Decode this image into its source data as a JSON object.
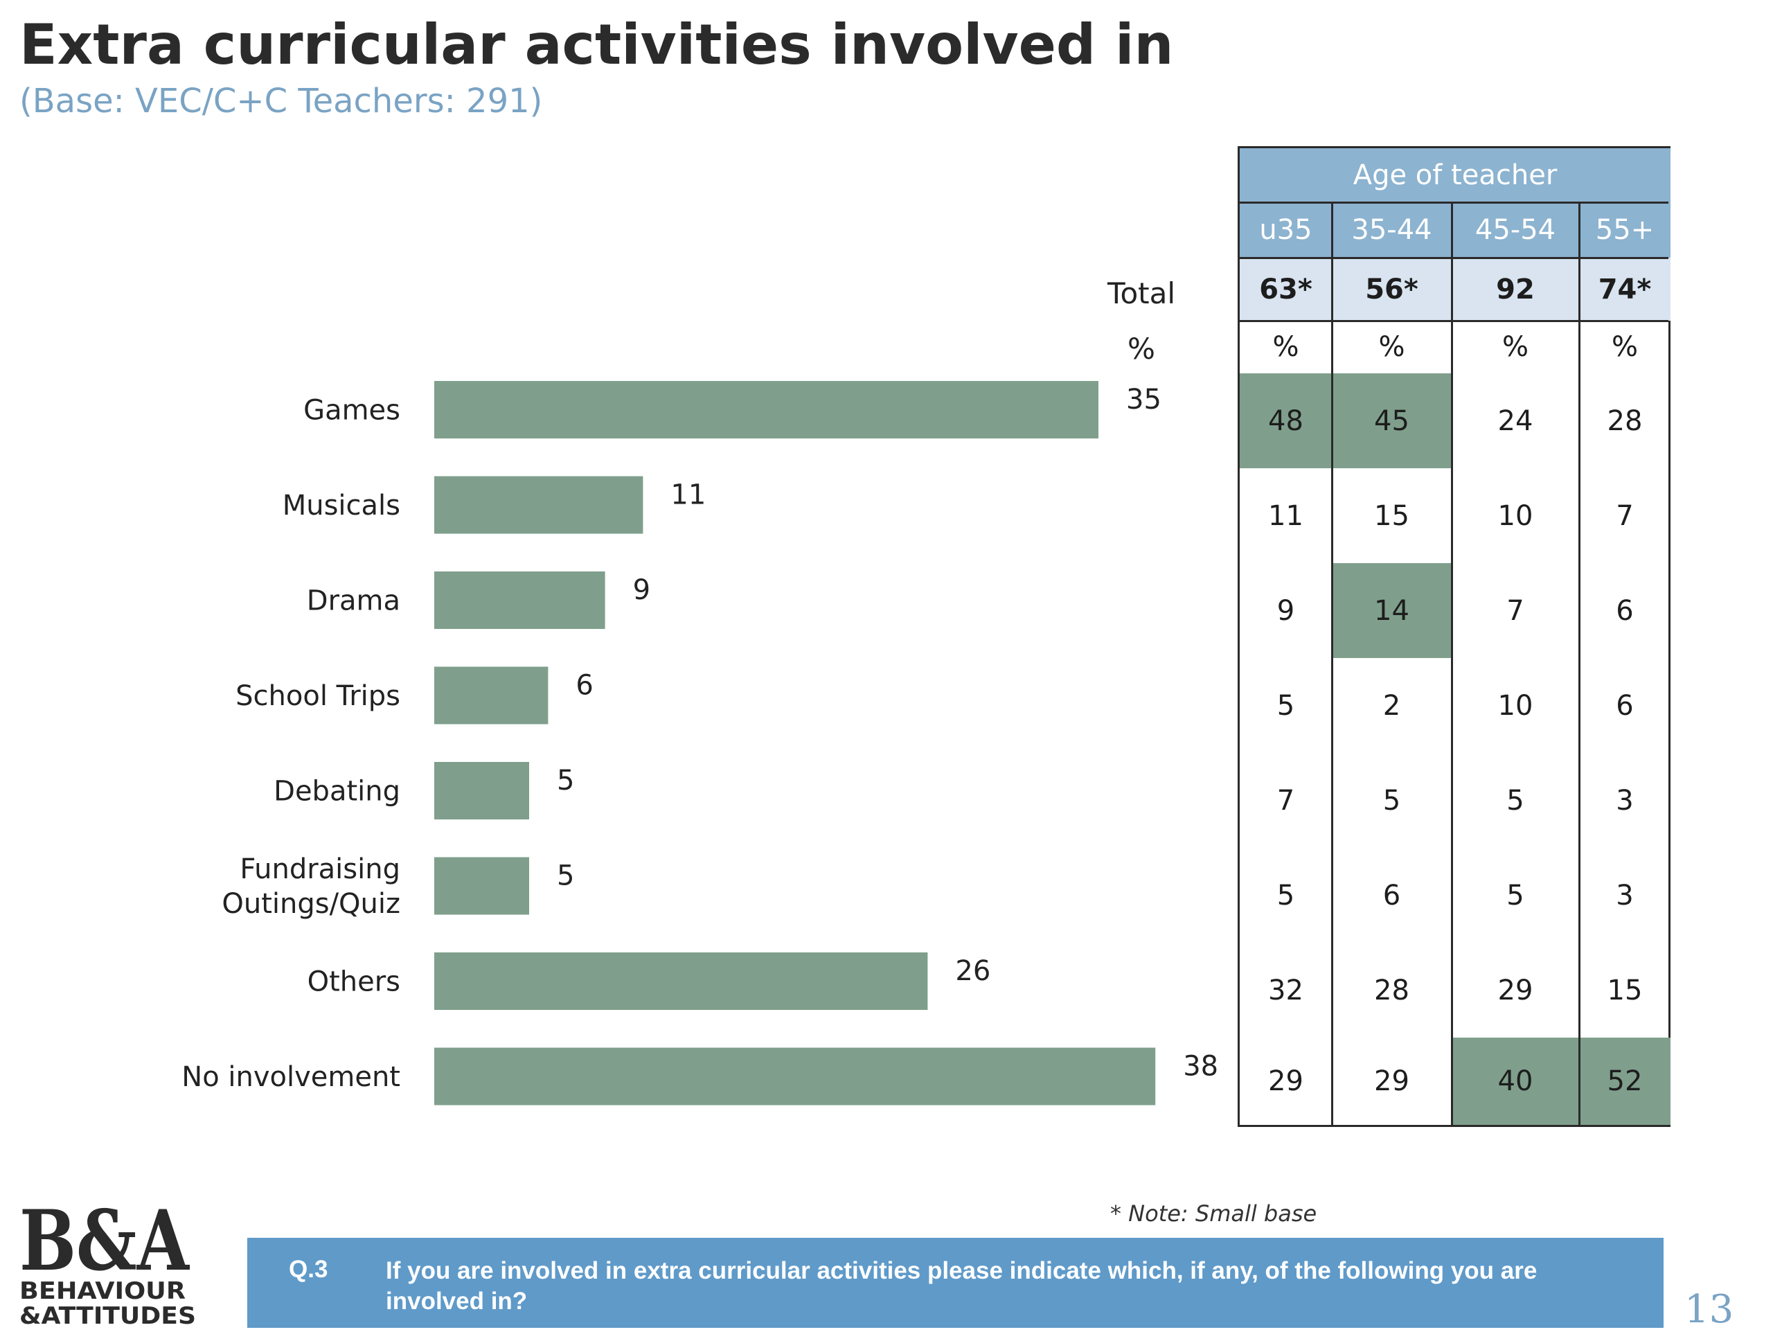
{
  "title": "Extra curricular activities involved in",
  "subtitle": "(Base: VEC/C+C Teachers: 291)",
  "chart_data": {
    "type": "bar",
    "orientation": "horizontal",
    "categories": [
      "Games",
      "Musicals",
      "Drama",
      "School Trips",
      "Debating",
      "Fundraising Outings/Quiz",
      "Others",
      "No involvement"
    ],
    "category_lines": [
      [
        "Games"
      ],
      [
        "Musicals"
      ],
      [
        "Drama"
      ],
      [
        "School Trips"
      ],
      [
        "Debating"
      ],
      [
        "Fundraising",
        "Outings/Quiz"
      ],
      [
        "Others"
      ],
      [
        "No involvement"
      ]
    ],
    "values": [
      35,
      11,
      9,
      6,
      5,
      5,
      26,
      38
    ],
    "value_labels": [
      "35",
      "11",
      "9",
      "6",
      "5",
      "5",
      "26",
      "38"
    ],
    "header_total": "Total",
    "header_unit": "%",
    "bar_color": "#7f9f8c"
  },
  "table": {
    "group_header": "Age of teacher",
    "columns": [
      "u35",
      "35-44",
      "45-54",
      "55+"
    ],
    "bases": [
      "63*",
      "56*",
      "92",
      "74*"
    ],
    "unit_row": [
      "%",
      "%",
      "%",
      "%"
    ],
    "rows": [
      [
        "48",
        "45",
        "24",
        "28"
      ],
      [
        "11",
        "15",
        "10",
        "7"
      ],
      [
        "9",
        "14",
        "7",
        "6"
      ],
      [
        "5",
        "2",
        "10",
        "6"
      ],
      [
        "7",
        "5",
        "5",
        "3"
      ],
      [
        "5",
        "6",
        "5",
        "3"
      ],
      [
        "32",
        "28",
        "29",
        "15"
      ],
      [
        "29",
        "29",
        "40",
        "52"
      ]
    ],
    "highlighted": [
      [
        0,
        0
      ],
      [
        0,
        1
      ],
      [
        2,
        1
      ],
      [
        7,
        2
      ],
      [
        7,
        3
      ]
    ],
    "header_color": "#8cb3d0",
    "base_color": "#d9e4f0",
    "highlight_color": "#7f9f8c"
  },
  "note": "* Note: Small base",
  "question": {
    "number": "Q.3",
    "text": "If you are involved in extra curricular activities please indicate which, if any, of the following you are involved in?"
  },
  "logo": {
    "mark": "B&A",
    "line1": "BEHAVIOUR",
    "line2": "&ATTITUDES"
  },
  "page_number": "13"
}
